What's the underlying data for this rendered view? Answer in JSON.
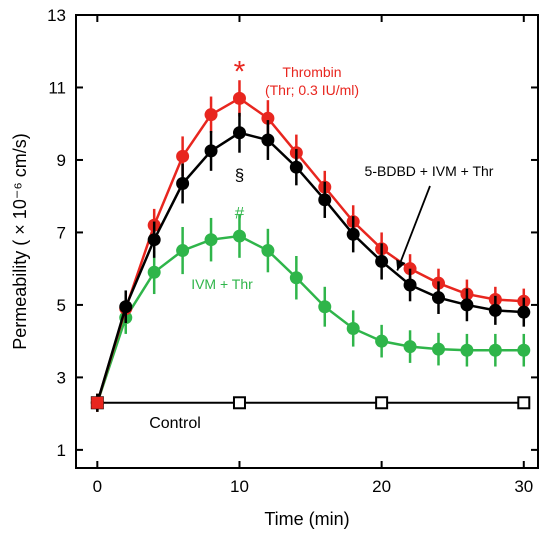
{
  "chart_data": {
    "type": "line",
    "xlabel": "Time (min)",
    "ylabel": "Permeability ( × 10⁻⁶ cm/s)",
    "xlim": [
      -1.5,
      31
    ],
    "ylim": [
      0.5,
      13
    ],
    "xticks": [
      0,
      10,
      20,
      30
    ],
    "yticks": [
      1,
      3,
      5,
      7,
      9,
      11,
      13
    ],
    "grid": false,
    "colors": {
      "thrombin": "#e8261f",
      "bdbd": "#000000",
      "ivm": "#2fb54a",
      "control": "#000000"
    },
    "series": [
      {
        "name": "Control",
        "label_lines": [
          "Control"
        ],
        "marker": "open-square",
        "color": "#000000",
        "x": [
          0,
          10,
          20,
          30
        ],
        "y": [
          2.3,
          2.3,
          2.3,
          2.3
        ],
        "err": [
          0,
          0.05,
          0.05,
          0.05
        ]
      },
      {
        "name": "Thrombin (Thr; 0.3 IU/ml)",
        "label_lines": [
          "Thrombin",
          "(Thr; 0.3 IU/ml)"
        ],
        "marker": "circle",
        "color": "#e8261f",
        "x": [
          0,
          2,
          4,
          6,
          8,
          10,
          12,
          14,
          16,
          18,
          20,
          22,
          24,
          26,
          28,
          30
        ],
        "y": [
          2.3,
          4.9,
          7.2,
          9.1,
          10.25,
          10.7,
          10.15,
          9.2,
          8.25,
          7.3,
          6.55,
          6.0,
          5.6,
          5.3,
          5.15,
          5.1
        ],
        "err": [
          0.25,
          0.4,
          0.45,
          0.55,
          0.5,
          0.5,
          0.5,
          0.5,
          0.45,
          0.45,
          0.45,
          0.4,
          0.4,
          0.4,
          0.35,
          0.35
        ]
      },
      {
        "name": "5-BDBD + IVM + Thr",
        "label_lines": [
          "5-BDBD + IVM + Thr"
        ],
        "marker": "circle",
        "color": "#000000",
        "x": [
          0,
          2,
          4,
          6,
          8,
          10,
          12,
          14,
          16,
          18,
          20,
          22,
          24,
          26,
          28,
          30
        ],
        "y": [
          2.3,
          4.95,
          6.8,
          8.35,
          9.25,
          9.75,
          9.55,
          8.8,
          7.9,
          6.95,
          6.2,
          5.55,
          5.2,
          5.0,
          4.85,
          4.8
        ],
        "err": [
          0.25,
          0.45,
          0.5,
          0.55,
          0.55,
          0.55,
          0.55,
          0.5,
          0.5,
          0.5,
          0.5,
          0.45,
          0.45,
          0.45,
          0.4,
          0.4
        ]
      },
      {
        "name": "IVM + Thr",
        "label_lines": [
          "IVM + Thr"
        ],
        "marker": "circle",
        "color": "#2fb54a",
        "x": [
          0,
          2,
          4,
          6,
          8,
          10,
          12,
          14,
          16,
          18,
          20,
          22,
          24,
          26,
          28,
          30
        ],
        "y": [
          2.3,
          4.65,
          5.9,
          6.5,
          6.8,
          6.9,
          6.5,
          5.75,
          4.95,
          4.35,
          4.0,
          3.85,
          3.78,
          3.75,
          3.75,
          3.75
        ],
        "err": [
          0.25,
          0.45,
          0.6,
          0.65,
          0.6,
          0.6,
          0.6,
          0.6,
          0.55,
          0.5,
          0.45,
          0.45,
          0.45,
          0.45,
          0.45,
          0.45
        ]
      }
    ],
    "annotations": [
      {
        "text": "*",
        "x": 10,
        "y": 11.55,
        "color": "#e8261f",
        "size": "large"
      },
      {
        "text": "§",
        "x": 10,
        "y": 8.6,
        "color": "#000000",
        "size": "small"
      },
      {
        "text": "#",
        "x": 10,
        "y": 7.55,
        "color": "#2fb54a",
        "size": "small"
      }
    ],
    "arrow": {
      "from_label": "5-BDBD + IVM + Thr",
      "to": {
        "x": 21.1,
        "y": 5.95
      }
    }
  }
}
